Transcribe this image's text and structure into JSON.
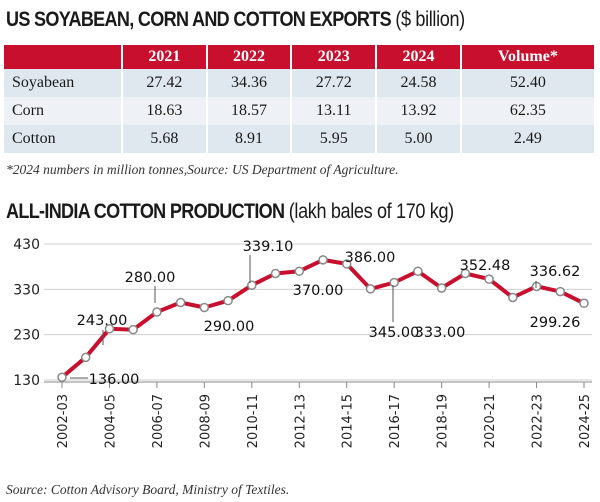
{
  "table_section": {
    "title": "US SOYABEAN, CORN AND COTTON EXPORTS",
    "unit": "($ billion)",
    "note": "*2024 numbers in million tonnes,Source: US Department of Agriculture."
  },
  "chart_section": {
    "title": "ALL-INDIA COTTON PRODUCTION",
    "unit": "(lakh bales of 170 kg)",
    "source": "Source: Cotton Advisory Board, Ministry of Textiles."
  },
  "chart_data": [
    {
      "type": "table",
      "columns": [
        "",
        "2021",
        "2022",
        "2023",
        "2024",
        "Volume*"
      ],
      "rows": [
        [
          "Soyabean",
          "27.42",
          "34.36",
          "27.72",
          "24.58",
          "52.40"
        ],
        [
          "Corn",
          "18.63",
          "18.57",
          "13.11",
          "13.92",
          "62.35"
        ],
        [
          "Cotton",
          "5.68",
          "8.91",
          "5.95",
          "5.00",
          "2.49"
        ]
      ]
    },
    {
      "type": "line",
      "x": [
        "2002-03",
        "2003-04",
        "2004-05",
        "2005-06",
        "2006-07",
        "2007-08",
        "2008-09",
        "2009-10",
        "2010-11",
        "2011-12",
        "2012-13",
        "2013-14",
        "2014-15",
        "2015-16",
        "2016-17",
        "2017-18",
        "2018-19",
        "2019-20",
        "2020-21",
        "2021-22",
        "2022-23",
        "2023-24",
        "2024-25"
      ],
      "xtick_labels": [
        "2002-03",
        "2004-05",
        "2006-07",
        "2008-09",
        "2010-11",
        "2012-13",
        "2014-15",
        "2016-17",
        "2018-19",
        "2020-21",
        "2022-23",
        "2024-25"
      ],
      "y": [
        136,
        180,
        243,
        241,
        280,
        301,
        290,
        305,
        339.1,
        365,
        370,
        395,
        386,
        331,
        345,
        370,
        333,
        365,
        352.48,
        312,
        336.62,
        325,
        299.26
      ],
      "yticks": [
        130,
        230,
        330,
        430
      ],
      "ylim": [
        130,
        430
      ],
      "data_labels": [
        {
          "index": 0,
          "text": "136.00"
        },
        {
          "index": 2,
          "text": "243.00"
        },
        {
          "index": 4,
          "text": "280.00"
        },
        {
          "index": 6,
          "text": "290.00"
        },
        {
          "index": 8,
          "text": "339.10"
        },
        {
          "index": 10,
          "text": "370.00"
        },
        {
          "index": 12,
          "text": "386.00"
        },
        {
          "index": 14,
          "text": "345.00"
        },
        {
          "index": 16,
          "text": "333.00"
        },
        {
          "index": 18,
          "text": "352.48"
        },
        {
          "index": 20,
          "text": "336.62"
        },
        {
          "index": 22,
          "text": "299.26"
        }
      ],
      "line_color": "#c8102e",
      "grid": "horizontal"
    }
  ]
}
